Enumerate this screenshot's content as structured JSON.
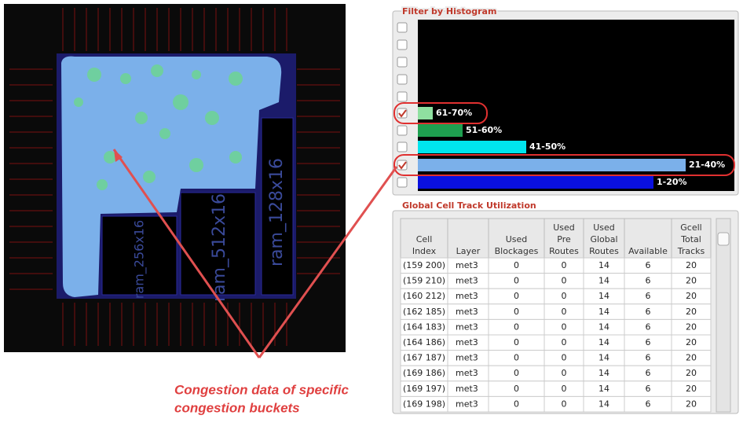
{
  "layout_view": {
    "blocks": [
      "ram_128x16",
      "ram_512x16",
      "ram_256x16"
    ]
  },
  "histogram": {
    "title": "Filter by Histogram",
    "buckets": [
      {
        "label": "61-70%",
        "checked": true
      },
      {
        "label": "51-60%",
        "checked": false
      },
      {
        "label": "41-50%",
        "checked": false
      },
      {
        "label": "21-40%",
        "checked": true
      },
      {
        "label": "1-20%",
        "checked": false
      }
    ]
  },
  "table": {
    "title": "Global Cell Track Utilization",
    "columns": [
      [
        "Cell",
        "Index"
      ],
      [
        "Layer"
      ],
      [
        "Used",
        "Blockages"
      ],
      [
        "Used",
        "Pre",
        "Routes"
      ],
      [
        "Used",
        "Global",
        "Routes"
      ],
      [
        "Available"
      ],
      [
        "Gcell",
        "Total",
        "Tracks"
      ]
    ],
    "rows": [
      [
        "(159 200)",
        "met3",
        0,
        0,
        14,
        6,
        20
      ],
      [
        "(159 210)",
        "met3",
        0,
        0,
        14,
        6,
        20
      ],
      [
        "(160 212)",
        "met3",
        0,
        0,
        14,
        6,
        20
      ],
      [
        "(162 185)",
        "met3",
        0,
        0,
        14,
        6,
        20
      ],
      [
        "(164 183)",
        "met3",
        0,
        0,
        14,
        6,
        20
      ],
      [
        "(164 186)",
        "met3",
        0,
        0,
        14,
        6,
        20
      ],
      [
        "(167 187)",
        "met3",
        0,
        0,
        14,
        6,
        20
      ],
      [
        "(169 186)",
        "met3",
        0,
        0,
        14,
        6,
        20
      ],
      [
        "(169 197)",
        "met3",
        0,
        0,
        14,
        6,
        20
      ],
      [
        "(169 198)",
        "met3",
        0,
        0,
        14,
        6,
        20
      ]
    ]
  },
  "annotation": {
    "lines": [
      "Congestion data of specific",
      "congestion buckets"
    ]
  }
}
